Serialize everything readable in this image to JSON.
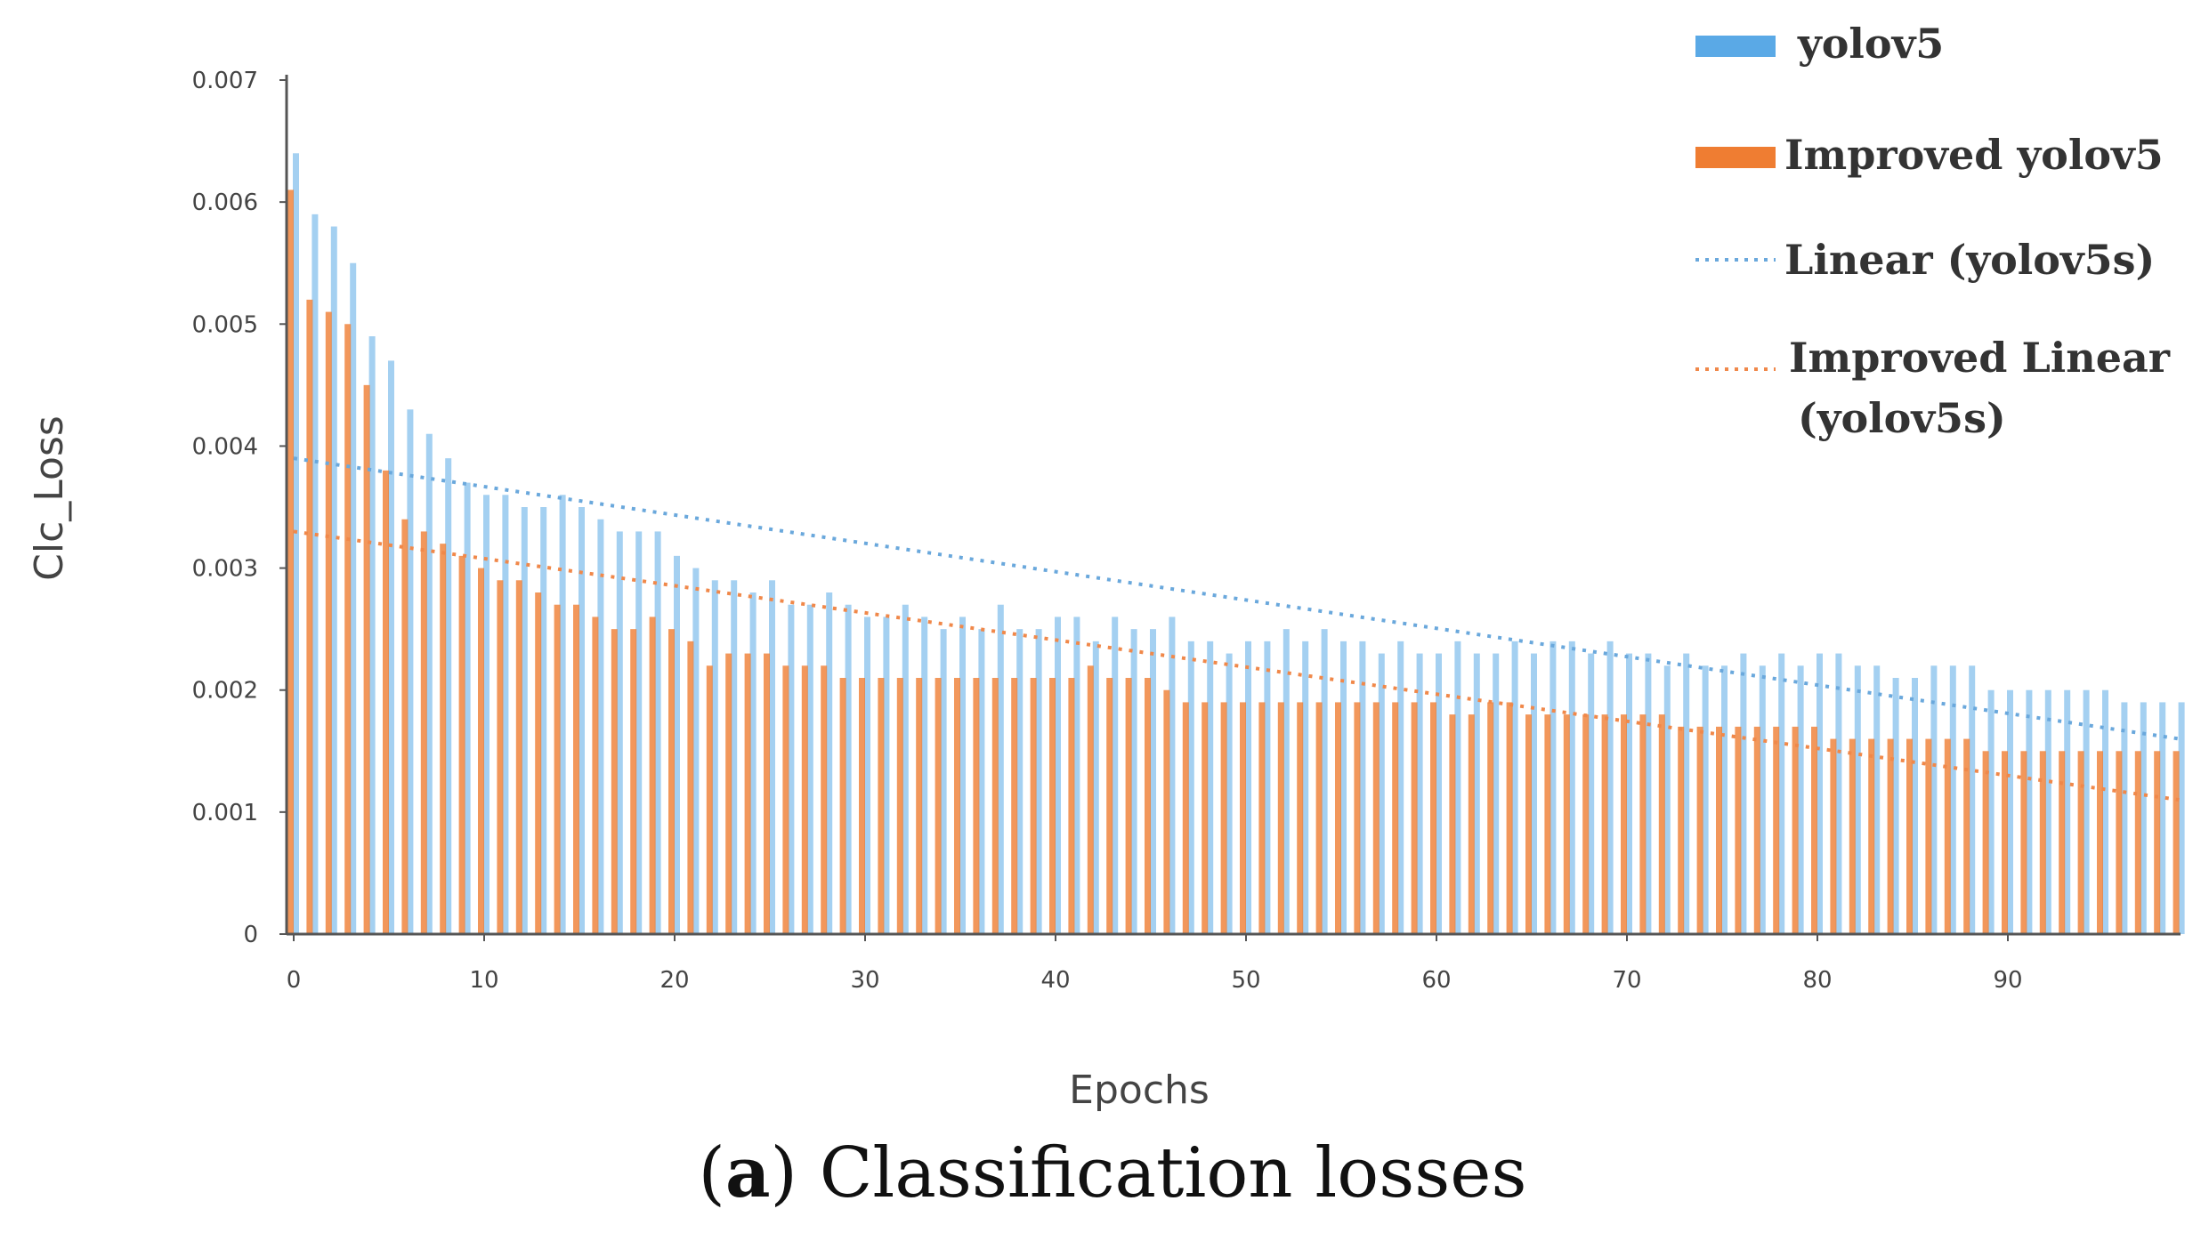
{
  "chart_data": {
    "type": "bar",
    "title": "",
    "xlabel": "Epochs",
    "ylabel": "Clc_Loss",
    "ylim": [
      0,
      0.007
    ],
    "yticks": [
      0,
      0.001,
      0.002,
      0.003,
      0.004,
      0.005,
      0.006,
      0.007
    ],
    "ytick_labels": [
      "0",
      "0.001",
      "0.002",
      "0.003",
      "0.004",
      "0.005",
      "0.006",
      "0.007"
    ],
    "xticks": [
      0,
      10,
      20,
      30,
      40,
      50,
      60,
      70,
      80,
      90
    ],
    "xtick_labels": [
      "0",
      "10",
      "20",
      "30",
      "40",
      "50",
      "60",
      "70",
      "80",
      "90"
    ],
    "series": [
      {
        "name": "yolov5",
        "color": "#5aa9e6",
        "values": [
          0.0064,
          0.0059,
          0.0058,
          0.0055,
          0.0049,
          0.0047,
          0.0043,
          0.0041,
          0.0039,
          0.0037,
          0.0036,
          0.0036,
          0.0035,
          0.0035,
          0.0036,
          0.0035,
          0.0034,
          0.0033,
          0.0033,
          0.0033,
          0.0031,
          0.003,
          0.0029,
          0.0029,
          0.0028,
          0.0029,
          0.0027,
          0.0027,
          0.0028,
          0.0027,
          0.0026,
          0.0026,
          0.0027,
          0.0026,
          0.0025,
          0.0026,
          0.0025,
          0.0027,
          0.0025,
          0.0025,
          0.0026,
          0.0026,
          0.0024,
          0.0026,
          0.0025,
          0.0025,
          0.0026,
          0.0024,
          0.0024,
          0.0023,
          0.0024,
          0.0024,
          0.0025,
          0.0024,
          0.0025,
          0.0024,
          0.0024,
          0.0023,
          0.0024,
          0.0023,
          0.0023,
          0.0024,
          0.0023,
          0.0023,
          0.0024,
          0.0023,
          0.0024,
          0.0024,
          0.0023,
          0.0024,
          0.0023,
          0.0023,
          0.0022,
          0.0023,
          0.0022,
          0.0022,
          0.0023,
          0.0022,
          0.0023,
          0.0022,
          0.0023,
          0.0023,
          0.0022,
          0.0022,
          0.0021,
          0.0021,
          0.0022,
          0.0022,
          0.0022,
          0.002,
          0.002,
          0.002,
          0.002,
          0.002,
          0.002,
          0.002,
          0.0019,
          0.0019,
          0.0019,
          0.0019
        ]
      },
      {
        "name": "Improved yolov5",
        "color": "#ef7d32",
        "values": [
          0.0061,
          0.0052,
          0.0051,
          0.005,
          0.0045,
          0.0038,
          0.0034,
          0.0033,
          0.0032,
          0.0031,
          0.003,
          0.0029,
          0.0029,
          0.0028,
          0.0027,
          0.0027,
          0.0026,
          0.0025,
          0.0025,
          0.0026,
          0.0025,
          0.0024,
          0.0022,
          0.0023,
          0.0023,
          0.0023,
          0.0022,
          0.0022,
          0.0022,
          0.0021,
          0.0021,
          0.0021,
          0.0021,
          0.0021,
          0.0021,
          0.0021,
          0.0021,
          0.0021,
          0.0021,
          0.0021,
          0.0021,
          0.0021,
          0.0022,
          0.0021,
          0.0021,
          0.0021,
          0.002,
          0.0019,
          0.0019,
          0.0019,
          0.0019,
          0.0019,
          0.0019,
          0.0019,
          0.0019,
          0.0019,
          0.0019,
          0.0019,
          0.0019,
          0.0019,
          0.0019,
          0.0018,
          0.0018,
          0.0019,
          0.0019,
          0.0018,
          0.0018,
          0.0018,
          0.0018,
          0.0018,
          0.0018,
          0.0018,
          0.0018,
          0.0017,
          0.0017,
          0.0017,
          0.0017,
          0.0017,
          0.0017,
          0.0017,
          0.0017,
          0.0016,
          0.0016,
          0.0016,
          0.0016,
          0.0016,
          0.0016,
          0.0016,
          0.0016,
          0.0015,
          0.0015,
          0.0015,
          0.0015,
          0.0015,
          0.0015,
          0.0015,
          0.0015,
          0.0015,
          0.0015,
          0.0015
        ]
      }
    ],
    "trendlines": [
      {
        "name": "Linear (yolov5s)",
        "color": "#6aa8dc",
        "start_y": 0.0039,
        "end_y": 0.0016
      },
      {
        "name": "Improved Linear (yolov5s)",
        "color": "#f0884a",
        "start_y": 0.0033,
        "end_y": 0.0011
      }
    ],
    "legend": {
      "position": "top-right",
      "entries": [
        {
          "label": "yolov5",
          "style": "bar",
          "color": "#5aa9e6"
        },
        {
          "label": "Improved yolov5",
          "style": "bar",
          "color": "#ef7d32"
        },
        {
          "label": "Linear (yolov5s)",
          "style": "dotted",
          "color": "#6aa8dc"
        },
        {
          "label_line1": "Improved Linear",
          "label_line2": "(yolov5s)",
          "style": "dotted",
          "color": "#f0884a"
        }
      ]
    },
    "grid": false
  },
  "caption": {
    "letter": "a",
    "open_paren": "(",
    "rest": ") Classification  losses"
  }
}
